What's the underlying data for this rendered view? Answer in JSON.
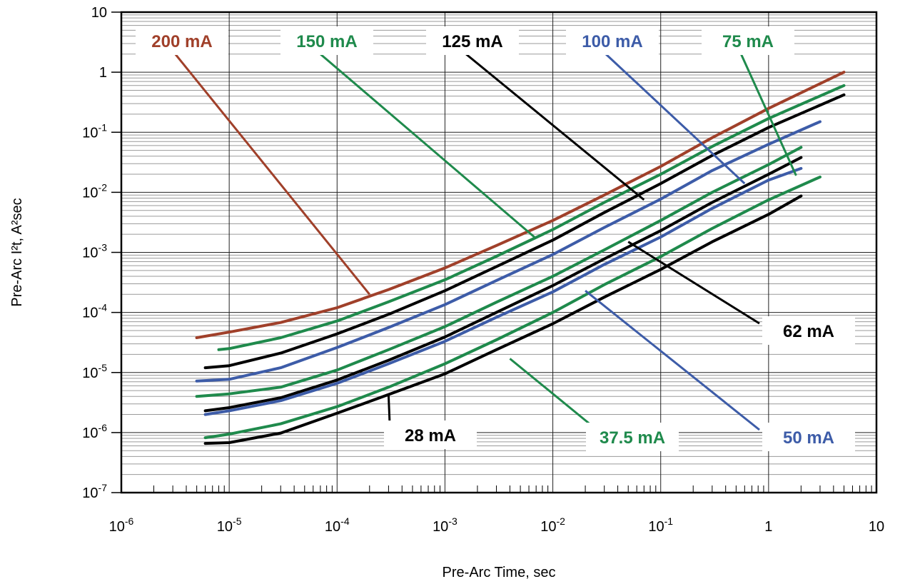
{
  "chart_data": {
    "type": "line",
    "title": "",
    "xlabel": "Pre-Arc Time, sec",
    "ylabel": "Pre-Arc I²t, A²sec",
    "x_scale": "log",
    "y_scale": "log",
    "xlim": [
      1e-06,
      10
    ],
    "ylim": [
      1e-07,
      10
    ],
    "grid": true,
    "x_ticks": [
      {
        "value": 1e-06,
        "base": "10",
        "exp": "-6"
      },
      {
        "value": 1e-05,
        "base": "10",
        "exp": "-5"
      },
      {
        "value": 0.0001,
        "base": "10",
        "exp": "-4"
      },
      {
        "value": 0.001,
        "base": "10",
        "exp": "-3"
      },
      {
        "value": 0.01,
        "base": "10",
        "exp": "-2"
      },
      {
        "value": 0.1,
        "base": "10",
        "exp": "-1"
      },
      {
        "value": 1,
        "base": "1",
        "exp": ""
      },
      {
        "value": 10,
        "base": "10",
        "exp": ""
      }
    ],
    "y_ticks": [
      {
        "value": 10,
        "base": "10",
        "exp": ""
      },
      {
        "value": 1,
        "base": "1",
        "exp": ""
      },
      {
        "value": 0.1,
        "base": "10",
        "exp": "-1"
      },
      {
        "value": 0.01,
        "base": "10",
        "exp": "-2"
      },
      {
        "value": 0.001,
        "base": "10",
        "exp": "-3"
      },
      {
        "value": 0.0001,
        "base": "10",
        "exp": "-4"
      },
      {
        "value": 1e-05,
        "base": "10",
        "exp": "-5"
      },
      {
        "value": 1e-06,
        "base": "10",
        "exp": "-6"
      },
      {
        "value": 1e-07,
        "base": "10",
        "exp": "-7"
      }
    ],
    "series": [
      {
        "name": "200 mA",
        "color": "#a0402a",
        "callout_anchor": [
          0.0002,
          0.0002
        ],
        "points": [
          [
            5e-06,
            3.8e-05
          ],
          [
            1e-05,
            4.7e-05
          ],
          [
            3e-05,
            6.8e-05
          ],
          [
            0.0001,
            0.00012
          ],
          [
            0.0003,
            0.00024
          ],
          [
            0.001,
            0.00055
          ],
          [
            0.003,
            0.0013
          ],
          [
            0.01,
            0.0034
          ],
          [
            0.03,
            0.009
          ],
          [
            0.1,
            0.027
          ],
          [
            0.3,
            0.081
          ],
          [
            1,
            0.25
          ],
          [
            5,
            1.0
          ]
        ]
      },
      {
        "name": "150 mA",
        "color": "#1f8a4c",
        "callout_anchor": [
          0.007,
          0.0017
        ],
        "points": [
          [
            8e-06,
            2.4e-05
          ],
          [
            1e-05,
            2.5e-05
          ],
          [
            3e-05,
            3.8e-05
          ],
          [
            0.0001,
            7.2e-05
          ],
          [
            0.0003,
            0.00015
          ],
          [
            0.001,
            0.00035
          ],
          [
            0.003,
            0.00086
          ],
          [
            0.01,
            0.0024
          ],
          [
            0.03,
            0.0068
          ],
          [
            0.1,
            0.02
          ],
          [
            0.3,
            0.058
          ],
          [
            1,
            0.17
          ],
          [
            5,
            0.6
          ]
        ]
      },
      {
        "name": "125 mA",
        "color": "#000000",
        "callout_anchor": [
          0.07,
          0.0075
        ],
        "points": [
          [
            6e-06,
            1.2e-05
          ],
          [
            1e-05,
            1.3e-05
          ],
          [
            3e-05,
            2.1e-05
          ],
          [
            0.0001,
            4.4e-05
          ],
          [
            0.0003,
            9.3e-05
          ],
          [
            0.001,
            0.00023
          ],
          [
            0.003,
            0.00058
          ],
          [
            0.01,
            0.0016
          ],
          [
            0.03,
            0.0046
          ],
          [
            0.1,
            0.014
          ],
          [
            0.3,
            0.041
          ],
          [
            1,
            0.12
          ],
          [
            5,
            0.42
          ]
        ]
      },
      {
        "name": "100 mA",
        "color": "#3d5ca8",
        "callout_anchor": [
          0.6,
          0.014
        ],
        "points": [
          [
            5e-06,
            7.2e-06
          ],
          [
            1e-05,
            7.7e-06
          ],
          [
            3e-05,
            1.2e-05
          ],
          [
            0.0001,
            2.6e-05
          ],
          [
            0.0003,
            5.6e-05
          ],
          [
            0.001,
            0.000135
          ],
          [
            0.003,
            0.00034
          ],
          [
            0.01,
            0.00092
          ],
          [
            0.03,
            0.0026
          ],
          [
            0.1,
            0.0077
          ],
          [
            0.3,
            0.023
          ],
          [
            1,
            0.063
          ],
          [
            3,
            0.15
          ]
        ]
      },
      {
        "name": "75 mA",
        "color": "#1f8a4c",
        "callout_anchor": [
          1.8,
          0.019
        ],
        "points": [
          [
            5e-06,
            4e-06
          ],
          [
            1e-05,
            4.4e-06
          ],
          [
            3e-05,
            5.7e-06
          ],
          [
            0.0001,
            1.1e-05
          ],
          [
            0.0003,
            2.4e-05
          ],
          [
            0.001,
            5.8e-05
          ],
          [
            0.003,
            0.000148
          ],
          [
            0.01,
            0.0004
          ],
          [
            0.03,
            0.0011
          ],
          [
            0.1,
            0.0034
          ],
          [
            0.3,
            0.01
          ],
          [
            1,
            0.029
          ],
          [
            2,
            0.056
          ]
        ]
      },
      {
        "name": "62 mA",
        "color": "#000000",
        "callout_anchor": [
          0.05,
          0.0015
        ],
        "points": [
          [
            6e-06,
            2.3e-06
          ],
          [
            1e-05,
            2.6e-06
          ],
          [
            3e-05,
            3.8e-06
          ],
          [
            0.0001,
            7.5e-06
          ],
          [
            0.0003,
            1.6e-05
          ],
          [
            0.001,
            3.9e-05
          ],
          [
            0.003,
            0.0001
          ],
          [
            0.01,
            0.00028
          ],
          [
            0.03,
            0.00078
          ],
          [
            0.1,
            0.0023
          ],
          [
            0.3,
            0.0068
          ],
          [
            1,
            0.02
          ],
          [
            2,
            0.038
          ]
        ]
      },
      {
        "name": "50 mA",
        "color": "#3d5ca8",
        "callout_anchor": [
          0.02,
          0.00023
        ],
        "points": [
          [
            6e-06,
            2e-06
          ],
          [
            1e-05,
            2.3e-06
          ],
          [
            3e-05,
            3.4e-06
          ],
          [
            0.0001,
            6.6e-06
          ],
          [
            0.0003,
            1.4e-05
          ],
          [
            0.001,
            3.3e-05
          ],
          [
            0.003,
            8.3e-05
          ],
          [
            0.01,
            0.00022
          ],
          [
            0.03,
            0.00063
          ],
          [
            0.1,
            0.0018
          ],
          [
            0.3,
            0.0054
          ],
          [
            1,
            0.016
          ],
          [
            2,
            0.025
          ]
        ]
      },
      {
        "name": "37.5 mA",
        "color": "#1f8a4c",
        "callout_anchor": [
          0.004,
          1.7e-05
        ],
        "points": [
          [
            6e-06,
            8.2e-07
          ],
          [
            1e-05,
            9.4e-07
          ],
          [
            3e-05,
            1.4e-06
          ],
          [
            0.0001,
            2.7e-06
          ],
          [
            0.0003,
            5.7e-06
          ],
          [
            0.001,
            1.4e-05
          ],
          [
            0.003,
            3.5e-05
          ],
          [
            0.01,
            0.0001
          ],
          [
            0.03,
            0.00029
          ],
          [
            0.1,
            0.00085
          ],
          [
            0.3,
            0.0025
          ],
          [
            1,
            0.0075
          ],
          [
            3,
            0.018
          ]
        ]
      },
      {
        "name": "28 mA",
        "color": "#000000",
        "callout_anchor": [
          0.0003,
          4.2e-06
        ],
        "points": [
          [
            6e-06,
            6.6e-07
          ],
          [
            1e-05,
            6.8e-07
          ],
          [
            3e-05,
            9.8e-07
          ],
          [
            0.0001,
            2.1e-06
          ],
          [
            0.0003,
            4.3e-06
          ],
          [
            0.001,
            9.5e-06
          ],
          [
            0.003,
            2.4e-05
          ],
          [
            0.01,
            6.5e-05
          ],
          [
            0.03,
            0.00018
          ],
          [
            0.1,
            0.00052
          ],
          [
            0.3,
            0.0015
          ],
          [
            1,
            0.0043
          ],
          [
            2,
            0.0087
          ]
        ]
      }
    ]
  }
}
